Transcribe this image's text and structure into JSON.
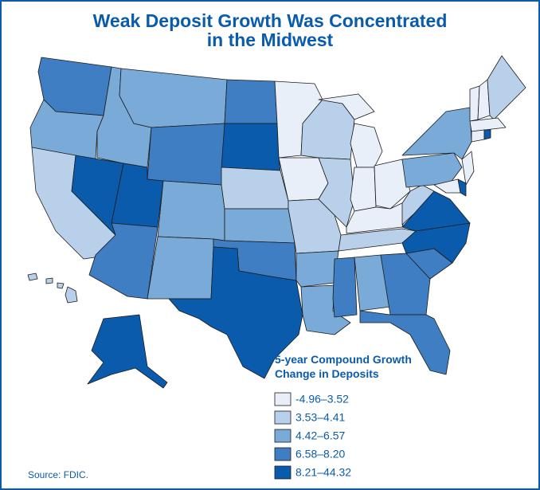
{
  "title": [
    "Weak Deposit Growth Was Concentrated",
    "in the Midwest"
  ],
  "legend": {
    "title": [
      "5-year Compound Growth",
      "Change in Deposits"
    ],
    "items": [
      {
        "label": "-4.96–3.52",
        "color": "#e8eff8"
      },
      {
        "label": "3.53–4.41",
        "color": "#b9d0ea"
      },
      {
        "label": "4.42–6.57",
        "color": "#7aaad8"
      },
      {
        "label": "6.58–8.20",
        "color": "#3f7ec2"
      },
      {
        "label": "8.21–44.32",
        "color": "#0a5bab"
      }
    ]
  },
  "source": "Source: FDIC."
}
